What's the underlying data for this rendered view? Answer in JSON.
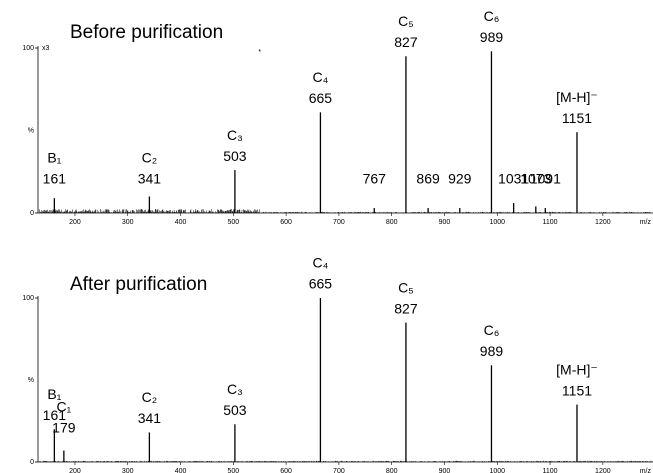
{
  "chart_data": [
    {
      "type": "spectrum",
      "title": "Before purification",
      "ylabel": "%",
      "xlabel": "m/z",
      "magnification": "x3",
      "marker": "*",
      "xlim": [
        130,
        1295
      ],
      "ylim": [
        0,
        100
      ],
      "yticks": [
        0,
        100
      ],
      "xticks": [
        200,
        300,
        400,
        500,
        600,
        700,
        800,
        900,
        1000,
        1100,
        1200
      ],
      "color": "#000000",
      "x": [
        161,
        341,
        503,
        665,
        767,
        827,
        869,
        929,
        989,
        1031,
        1073,
        1091,
        1151
      ],
      "values": [
        9,
        10,
        26,
        61,
        3,
        95,
        3,
        3,
        98,
        6,
        4,
        3,
        49
      ],
      "ion_labels": [
        "B₁",
        "C₂",
        "C₃",
        "C₄",
        null,
        "C₅",
        null,
        null,
        "C₆",
        null,
        null,
        null,
        "[M-H]⁻"
      ]
    },
    {
      "type": "spectrum",
      "title": "After purification",
      "ylabel": "%",
      "xlabel": "m/z",
      "xlim": [
        130,
        1295
      ],
      "ylim": [
        0,
        100
      ],
      "yticks": [
        0,
        100
      ],
      "xticks": [
        200,
        300,
        400,
        500,
        600,
        700,
        800,
        900,
        1000,
        1100,
        1200
      ],
      "color": "#000000",
      "x": [
        161,
        179,
        341,
        503,
        665,
        827,
        989,
        1151
      ],
      "values": [
        20,
        7,
        18,
        23,
        100,
        85,
        59,
        35
      ],
      "ion_labels": [
        "B₁",
        "C₁",
        "C₂",
        "C₃",
        "C₄",
        "C₅",
        "C₆",
        "[M-H]⁻"
      ]
    }
  ]
}
